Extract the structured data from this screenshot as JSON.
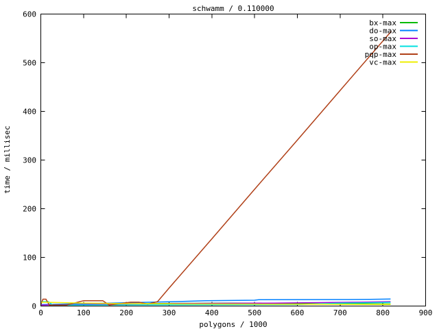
{
  "chart_data": {
    "type": "line",
    "title": "schwamm / 0.110000",
    "xlabel": "polygons / 1000",
    "ylabel": "time / millisec",
    "xlim": [
      0,
      900
    ],
    "ylim": [
      0,
      600
    ],
    "xticks": [
      0,
      100,
      200,
      300,
      400,
      500,
      600,
      700,
      800,
      900
    ],
    "yticks": [
      0,
      100,
      200,
      300,
      400,
      500,
      600
    ],
    "grid": false,
    "legend_position": "top-right-inside",
    "background_color": "#ffffff",
    "axis_color": "#000000",
    "series": [
      {
        "name": "bx-max",
        "color": "#00bb00",
        "points": [
          [
            0,
            2.5
          ],
          [
            150,
            4
          ],
          [
            300,
            5.5
          ],
          [
            450,
            6
          ],
          [
            600,
            5
          ],
          [
            818,
            4.2
          ]
        ]
      },
      {
        "name": "do-max",
        "color": "#0080ff",
        "points": [
          [
            0,
            3
          ],
          [
            80,
            4.5
          ],
          [
            160,
            6
          ],
          [
            240,
            7.5
          ],
          [
            310,
            9
          ],
          [
            385,
            11
          ],
          [
            500,
            12
          ],
          [
            510,
            13
          ],
          [
            700,
            13.3
          ],
          [
            770,
            13.8
          ],
          [
            818,
            14.5
          ]
        ]
      },
      {
        "name": "so-max",
        "color": "#aa00d4",
        "points": [
          [
            0,
            2
          ],
          [
            100,
            3
          ],
          [
            200,
            4
          ],
          [
            300,
            5
          ],
          [
            400,
            5.5
          ],
          [
            546,
            6
          ],
          [
            650,
            7
          ],
          [
            750,
            8
          ],
          [
            818,
            9
          ]
        ]
      },
      {
        "name": "op-max",
        "color": "#00e0e0",
        "points": [
          [
            0,
            9
          ],
          [
            18,
            9
          ],
          [
            28,
            2
          ],
          [
            300,
            2.5
          ],
          [
            600,
            3
          ],
          [
            700,
            6
          ],
          [
            818,
            7.5
          ]
        ]
      },
      {
        "name": "pqp-max",
        "color": "#b04018",
        "points": [
          [
            0,
            3
          ],
          [
            5,
            14
          ],
          [
            12,
            14
          ],
          [
            20,
            2
          ],
          [
            60,
            2
          ],
          [
            100,
            11
          ],
          [
            145,
            11
          ],
          [
            160,
            2
          ],
          [
            210,
            8
          ],
          [
            230,
            8
          ],
          [
            250,
            4
          ],
          [
            273,
            9
          ],
          [
            300,
            37
          ],
          [
            400,
            138
          ],
          [
            500,
            240
          ],
          [
            600,
            341
          ],
          [
            700,
            443
          ],
          [
            820,
            565
          ]
        ]
      },
      {
        "name": "vc-max",
        "color": "#eeee00",
        "points": [
          [
            0,
            8
          ],
          [
            100,
            6
          ],
          [
            200,
            5
          ],
          [
            300,
            4.5
          ],
          [
            500,
            4
          ],
          [
            818,
            3.2
          ]
        ]
      }
    ]
  }
}
